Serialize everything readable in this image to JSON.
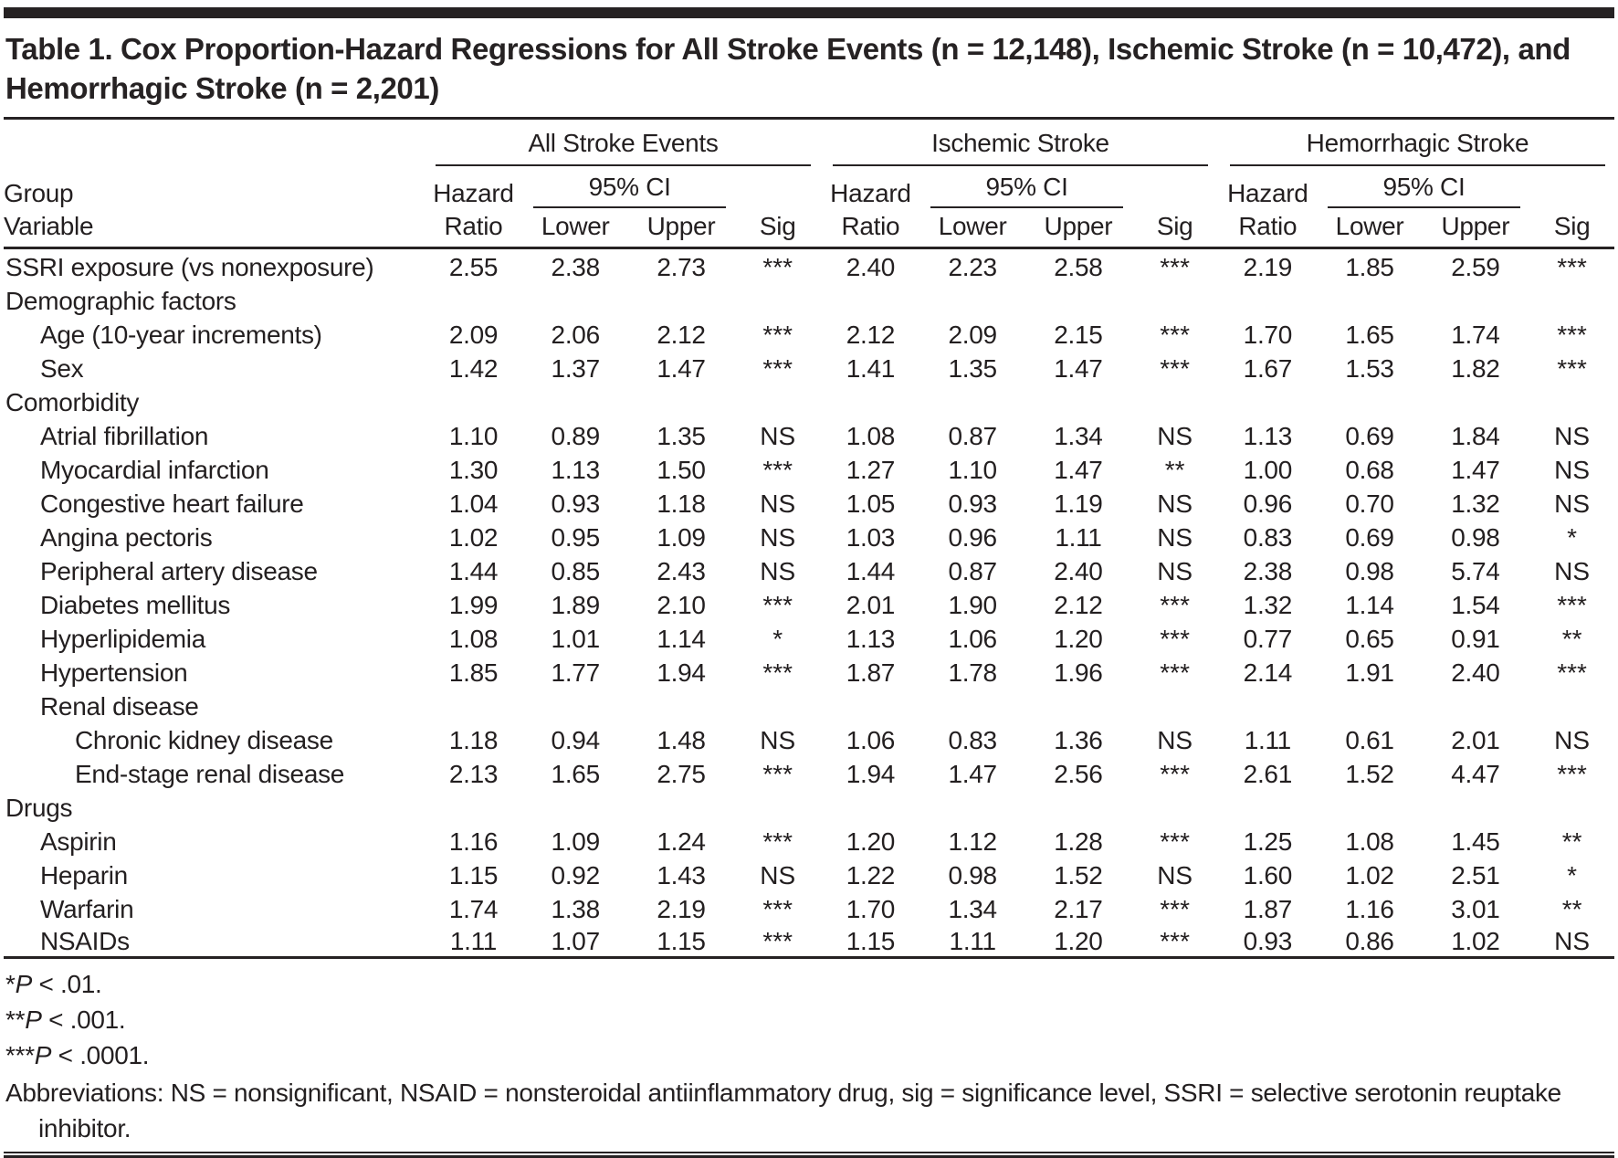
{
  "title": "Table 1. Cox Proportion-Hazard Regressions for All Stroke Events (n = 12,148), Ischemic Stroke (n = 10,472), and Hemorrhagic Stroke (n = 2,201)",
  "header": {
    "col1_line1": "Group",
    "col1_line2": "Variable",
    "groups": [
      "All Stroke Events",
      "Ischemic Stroke",
      "Hemorrhagic Stroke"
    ],
    "hazard_line1": "Hazard",
    "hazard_line2": "Ratio",
    "ci_label": "95% CI",
    "lower": "Lower",
    "upper": "Upper",
    "sig": "Sig"
  },
  "chart_data": {
    "type": "table",
    "title": "Table 1. Cox Proportion-Hazard Regressions for All Stroke Events (n = 12,148), Ischemic Stroke (n = 10,472), and Hemorrhagic Stroke (n = 2,201)",
    "column_groups": [
      "All Stroke Events",
      "Ischemic Stroke",
      "Hemorrhagic Stroke"
    ],
    "sub_columns": [
      "Hazard Ratio",
      "95% CI Lower",
      "95% CI Upper",
      "Sig"
    ],
    "rows": [
      {
        "label": "SSRI exposure (vs nonexposure)",
        "indent": 0,
        "values": [
          "2.55",
          "2.38",
          "2.73",
          "***",
          "2.40",
          "2.23",
          "2.58",
          "***",
          "2.19",
          "1.85",
          "2.59",
          "***"
        ]
      },
      {
        "label": "Demographic factors",
        "indent": 0,
        "values": null
      },
      {
        "label": "Age (10-year increments)",
        "indent": 1,
        "values": [
          "2.09",
          "2.06",
          "2.12",
          "***",
          "2.12",
          "2.09",
          "2.15",
          "***",
          "1.70",
          "1.65",
          "1.74",
          "***"
        ]
      },
      {
        "label": "Sex",
        "indent": 1,
        "values": [
          "1.42",
          "1.37",
          "1.47",
          "***",
          "1.41",
          "1.35",
          "1.47",
          "***",
          "1.67",
          "1.53",
          "1.82",
          "***"
        ]
      },
      {
        "label": "Comorbidity",
        "indent": 0,
        "values": null
      },
      {
        "label": "Atrial fibrillation",
        "indent": 1,
        "values": [
          "1.10",
          "0.89",
          "1.35",
          "NS",
          "1.08",
          "0.87",
          "1.34",
          "NS",
          "1.13",
          "0.69",
          "1.84",
          "NS"
        ]
      },
      {
        "label": "Myocardial infarction",
        "indent": 1,
        "values": [
          "1.30",
          "1.13",
          "1.50",
          "***",
          "1.27",
          "1.10",
          "1.47",
          "**",
          "1.00",
          "0.68",
          "1.47",
          "NS"
        ]
      },
      {
        "label": "Congestive heart failure",
        "indent": 1,
        "values": [
          "1.04",
          "0.93",
          "1.18",
          "NS",
          "1.05",
          "0.93",
          "1.19",
          "NS",
          "0.96",
          "0.70",
          "1.32",
          "NS"
        ]
      },
      {
        "label": "Angina pectoris",
        "indent": 1,
        "values": [
          "1.02",
          "0.95",
          "1.09",
          "NS",
          "1.03",
          "0.96",
          "1.11",
          "NS",
          "0.83",
          "0.69",
          "0.98",
          "*"
        ]
      },
      {
        "label": "Peripheral artery disease",
        "indent": 1,
        "values": [
          "1.44",
          "0.85",
          "2.43",
          "NS",
          "1.44",
          "0.87",
          "2.40",
          "NS",
          "2.38",
          "0.98",
          "5.74",
          "NS"
        ]
      },
      {
        "label": "Diabetes mellitus",
        "indent": 1,
        "values": [
          "1.99",
          "1.89",
          "2.10",
          "***",
          "2.01",
          "1.90",
          "2.12",
          "***",
          "1.32",
          "1.14",
          "1.54",
          "***"
        ]
      },
      {
        "label": "Hyperlipidemia",
        "indent": 1,
        "values": [
          "1.08",
          "1.01",
          "1.14",
          "*",
          "1.13",
          "1.06",
          "1.20",
          "***",
          "0.77",
          "0.65",
          "0.91",
          "**"
        ]
      },
      {
        "label": "Hypertension",
        "indent": 1,
        "values": [
          "1.85",
          "1.77",
          "1.94",
          "***",
          "1.87",
          "1.78",
          "1.96",
          "***",
          "2.14",
          "1.91",
          "2.40",
          "***"
        ]
      },
      {
        "label": "Renal disease",
        "indent": 1,
        "values": null
      },
      {
        "label": "Chronic kidney disease",
        "indent": 2,
        "values": [
          "1.18",
          "0.94",
          "1.48",
          "NS",
          "1.06",
          "0.83",
          "1.36",
          "NS",
          "1.11",
          "0.61",
          "2.01",
          "NS"
        ]
      },
      {
        "label": "End-stage renal disease",
        "indent": 2,
        "values": [
          "2.13",
          "1.65",
          "2.75",
          "***",
          "1.94",
          "1.47",
          "2.56",
          "***",
          "2.61",
          "1.52",
          "4.47",
          "***"
        ]
      },
      {
        "label": "Drugs",
        "indent": 0,
        "values": null
      },
      {
        "label": "Aspirin",
        "indent": 1,
        "values": [
          "1.16",
          "1.09",
          "1.24",
          "***",
          "1.20",
          "1.12",
          "1.28",
          "***",
          "1.25",
          "1.08",
          "1.45",
          "**"
        ]
      },
      {
        "label": "Heparin",
        "indent": 1,
        "values": [
          "1.15",
          "0.92",
          "1.43",
          "NS",
          "1.22",
          "0.98",
          "1.52",
          "NS",
          "1.60",
          "1.02",
          "2.51",
          "*"
        ]
      },
      {
        "label": "Warfarin",
        "indent": 1,
        "values": [
          "1.74",
          "1.38",
          "2.19",
          "***",
          "1.70",
          "1.34",
          "2.17",
          "***",
          "1.87",
          "1.16",
          "3.01",
          "**"
        ]
      },
      {
        "label": "NSAIDs",
        "indent": 1,
        "values": [
          "1.11",
          "1.07",
          "1.15",
          "***",
          "1.15",
          "1.11",
          "1.20",
          "***",
          "0.93",
          "0.86",
          "1.02",
          "NS"
        ]
      }
    ]
  },
  "footnotes": [
    {
      "stars": "*",
      "p": "P",
      "cond": " < .01."
    },
    {
      "stars": "**",
      "p": "P",
      "cond": " < .001."
    },
    {
      "stars": "***",
      "p": "P",
      "cond": " < .0001."
    }
  ],
  "abbreviations": "Abbreviations: NS = nonsignificant, NSAID = nonsteroidal antiinflammatory drug, sig = significance level, SSRI = selective serotonin reuptake inhibitor.",
  "colors": {
    "text": "#231f20",
    "rule": "#262223",
    "background": "#ffffff"
  }
}
